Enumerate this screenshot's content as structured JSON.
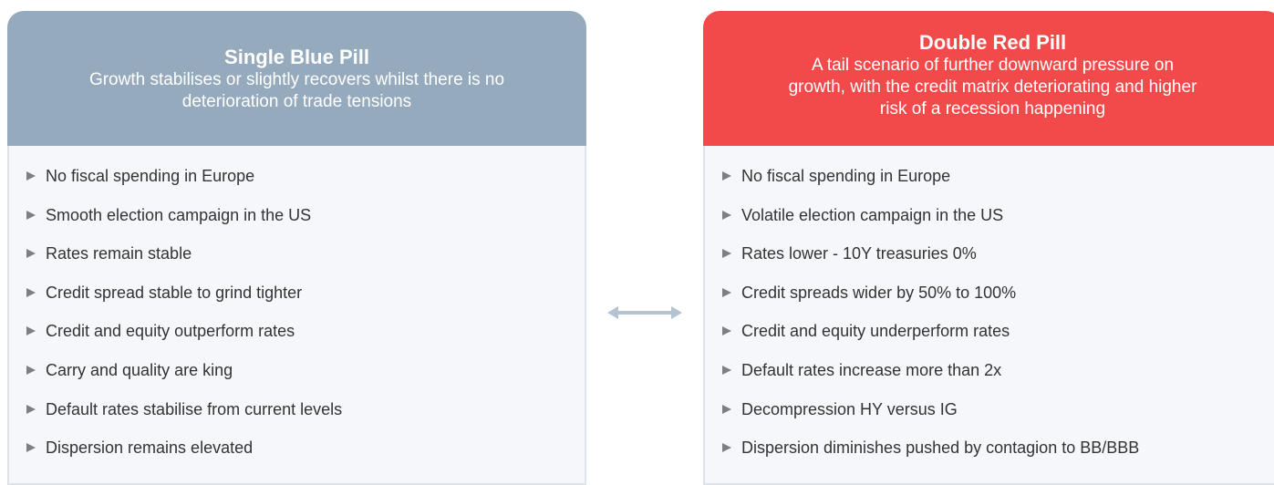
{
  "left": {
    "title": "Single Blue Pill",
    "subtitle": [
      "Growth stabilises or slightly recovers whilst there is no",
      "deterioration of trade tensions"
    ],
    "items": [
      "No fiscal spending in Europe",
      "Smooth election campaign in the US",
      "Rates remain stable",
      "Credit spread stable to grind tighter",
      "Credit and equity outperform rates",
      "Carry and quality are king",
      "Default rates stabilise from current levels",
      "Dispersion remains elevated"
    ]
  },
  "right": {
    "title": "Double Red Pill",
    "subtitle": [
      "A tail scenario of further downward pressure on",
      "growth, with the credit matrix deteriorating and higher",
      "risk of a recession happening"
    ],
    "items": [
      "No fiscal spending in Europe",
      "Volatile election campaign in the US",
      "Rates lower - 10Y treasuries 0%",
      "Credit spreads wider by 50% to 100%",
      "Credit and equity underperform rates",
      "Default rates increase more than 2x",
      "Decompression HY versus IG",
      "Dispersion diminishes pushed by contagion to BB/BBB"
    ]
  }
}
